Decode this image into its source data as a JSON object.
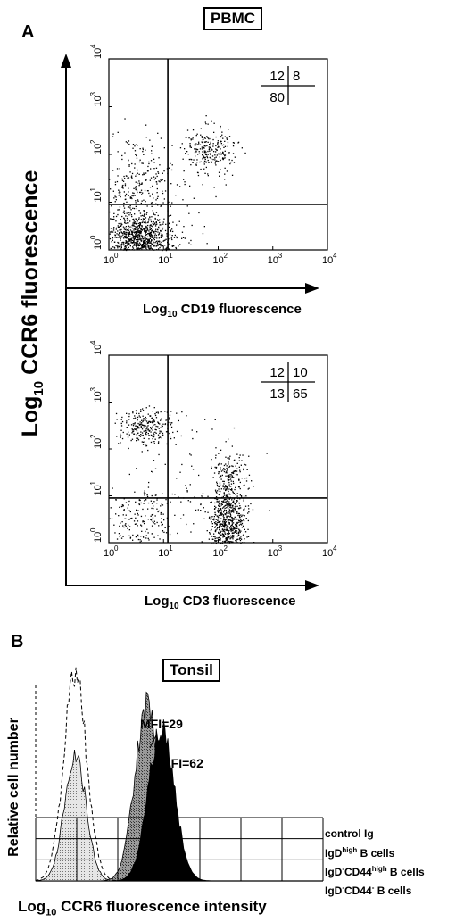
{
  "figure": {
    "panel_a_title": "PBMC",
    "panel_a_letter": "A",
    "panel_b_title": "Tonsil",
    "panel_b_letter": "B",
    "y_axis_label_a": "Log10 CCR6 fluorescence",
    "y_axis_label_a_base": "Log",
    "y_axis_label_a_sub": "10",
    "y_axis_label_a_rest": " CCR6 fluorescence"
  },
  "chart_data": [
    {
      "type": "scatter",
      "panel": "A-top",
      "xlabel": "Log10 CD19 fluorescence",
      "xlabel_base": "Log",
      "xlabel_sub": "10",
      "xlabel_rest": " CD19 fluorescence",
      "ylabel": "Log10 CCR6 fluorescence",
      "x_scale": "log",
      "y_scale": "log",
      "xlim": [
        1,
        10000
      ],
      "ylim": [
        1,
        10000
      ],
      "x_ticks": [
        {
          "base": "10",
          "exp": "0"
        },
        {
          "base": "10",
          "exp": "1"
        },
        {
          "base": "10",
          "exp": "2"
        },
        {
          "base": "10",
          "exp": "3"
        },
        {
          "base": "10",
          "exp": "4"
        }
      ],
      "y_ticks": [
        {
          "base": "10",
          "exp": "0"
        },
        {
          "base": "10",
          "exp": "1"
        },
        {
          "base": "10",
          "exp": "2"
        },
        {
          "base": "10",
          "exp": "3"
        },
        {
          "base": "10",
          "exp": "4"
        }
      ],
      "gates": {
        "x": 12,
        "y": 9
      },
      "quadrant_percentages": {
        "upper_left": "12",
        "upper_right": "8",
        "lower_left": "80",
        "lower_right": ""
      },
      "populations": [
        {
          "cx": 3.5,
          "cy": 1.8,
          "sx": 0.3,
          "sy": 0.26,
          "n": 900
        },
        {
          "cx": 3.0,
          "cy": 25,
          "sx": 0.3,
          "sy": 0.45,
          "n": 240
        },
        {
          "cx": 70,
          "cy": 130,
          "sx": 0.22,
          "sy": 0.25,
          "n": 240
        },
        {
          "cx": 10,
          "cy": 8,
          "sx": 0.6,
          "sy": 0.7,
          "n": 90
        }
      ]
    },
    {
      "type": "scatter",
      "panel": "A-bottom",
      "xlabel": "Log10 CD3 fluorescence",
      "xlabel_base": "Log",
      "xlabel_sub": "10",
      "xlabel_rest": " CD3 fluorescence",
      "ylabel": "Log10 CCR6 fluorescence",
      "x_scale": "log",
      "y_scale": "log",
      "xlim": [
        1,
        10000
      ],
      "ylim": [
        1,
        10000
      ],
      "x_ticks": [
        {
          "base": "10",
          "exp": "0"
        },
        {
          "base": "10",
          "exp": "1"
        },
        {
          "base": "10",
          "exp": "2"
        },
        {
          "base": "10",
          "exp": "3"
        },
        {
          "base": "10",
          "exp": "4"
        }
      ],
      "y_ticks": [
        {
          "base": "10",
          "exp": "0"
        },
        {
          "base": "10",
          "exp": "1"
        },
        {
          "base": "10",
          "exp": "2"
        },
        {
          "base": "10",
          "exp": "3"
        },
        {
          "base": "10",
          "exp": "4"
        }
      ],
      "gates": {
        "x": 12,
        "y": 9
      },
      "quadrant_percentages": {
        "upper_left": "12",
        "upper_right": "10",
        "lower_left": "13",
        "lower_right": "65"
      },
      "populations": [
        {
          "cx": 150,
          "cy": 2.5,
          "sx": 0.16,
          "sy": 0.38,
          "n": 650
        },
        {
          "cx": 150,
          "cy": 25,
          "sx": 0.17,
          "sy": 0.3,
          "n": 160
        },
        {
          "cx": 4.5,
          "cy": 300,
          "sx": 0.25,
          "sy": 0.2,
          "n": 260
        },
        {
          "cx": 3.5,
          "cy": 3,
          "sx": 0.3,
          "sy": 0.35,
          "n": 180
        },
        {
          "cx": 30,
          "cy": 10,
          "sx": 0.6,
          "sy": 0.8,
          "n": 110
        }
      ]
    },
    {
      "type": "area",
      "panel": "B",
      "xlabel": "Log10 CCR6 fluorescence intensity",
      "xlabel_base": "Log",
      "xlabel_sub": "10",
      "xlabel_rest": " CCR6 fluorescence intensity",
      "ylabel": "Relative cell number",
      "annotations": [
        {
          "text": "MFI=29",
          "series": "IgDhigh B cells"
        },
        {
          "text": "MFI=62",
          "series": "IgD-CD44high B cells"
        }
      ],
      "series": [
        {
          "name": "control Ig",
          "label_parts": [
            "control Ig"
          ],
          "style": "dashed",
          "peak_x": 0.55,
          "width": 0.16,
          "peak_y": 1.0
        },
        {
          "name": "IgDhigh B cells",
          "label_parts": [
            "IgD",
            "high",
            " B cells"
          ],
          "style": "stippled-gray",
          "peak_x": 1.55,
          "width": 0.17,
          "peak_y": 0.85
        },
        {
          "name": "IgD-CD44high B cells",
          "label_parts": [
            "IgD",
            "-",
            "CD44",
            "high",
            " B cells"
          ],
          "style": "black",
          "peak_x": 1.75,
          "width": 0.18,
          "peak_y": 0.75
        },
        {
          "name": "IgD-CD44- B cells",
          "label_parts": [
            "IgD",
            "-",
            "CD44",
            "-",
            " B cells"
          ],
          "style": "stippled-light",
          "peak_x": 0.55,
          "width": 0.15,
          "peak_y": 0.62
        }
      ]
    }
  ]
}
